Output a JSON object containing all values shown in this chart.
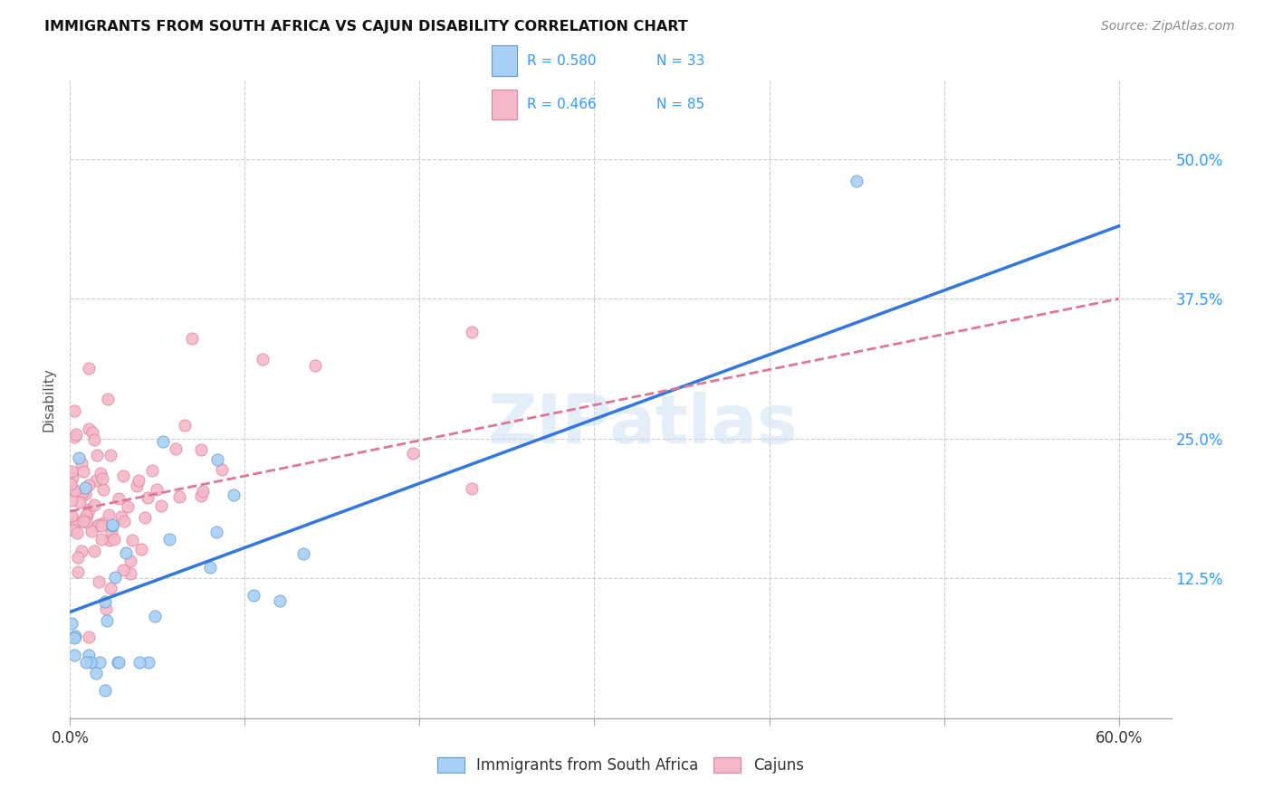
{
  "title": "IMMIGRANTS FROM SOUTH AFRICA VS CAJUN DISABILITY CORRELATION CHART",
  "source": "Source: ZipAtlas.com",
  "ylabel": "Disability",
  "ytick_vals": [
    12.5,
    25.0,
    37.5,
    50.0
  ],
  "xtick_vals": [
    0,
    10,
    20,
    30,
    40,
    50,
    60
  ],
  "color_blue": "#a8d0f5",
  "color_pink": "#f5b8c8",
  "color_blue_line": "#3377dd",
  "color_pink_line": "#dd7799",
  "color_legend_text": "#3399ff",
  "watermark": "ZIPatlas",
  "blue_line_x": [
    0,
    60
  ],
  "blue_line_y": [
    9.5,
    44.0
  ],
  "pink_line_x": [
    0,
    60
  ],
  "pink_line_y": [
    18.5,
    37.5
  ],
  "xlim": [
    0,
    63
  ],
  "ylim": [
    0,
    57
  ]
}
